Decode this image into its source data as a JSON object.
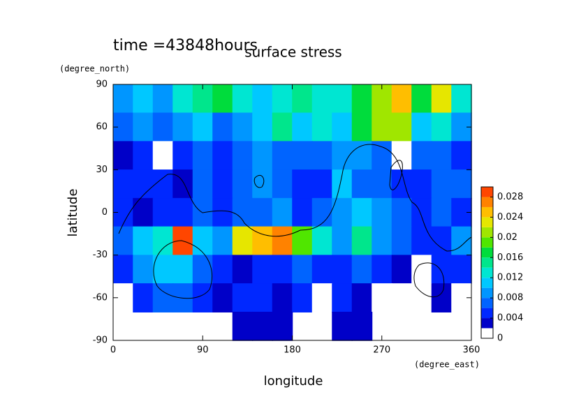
{
  "chart_data": {
    "type": "contour",
    "title": "surface stress",
    "subtitle": "time =43848hours",
    "x_label": "longitude",
    "y_label": "latitude",
    "x_unit": "(degree_east)",
    "y_unit": "(degree_north)",
    "xlim": [
      0,
      360
    ],
    "ylim": [
      -90,
      90
    ],
    "xticks": [
      0,
      90,
      180,
      270,
      360
    ],
    "yticks": [
      -90,
      -60,
      -30,
      0,
      30,
      60,
      90
    ],
    "x": [
      10,
      30,
      50,
      70,
      90,
      110,
      130,
      150,
      170,
      190,
      210,
      230,
      250,
      270,
      290,
      310,
      330,
      350
    ],
    "y": [
      80,
      60,
      40,
      20,
      0,
      -20,
      -40,
      -60,
      -80
    ],
    "z": [
      [
        0.008,
        0.01,
        0.008,
        0.012,
        0.014,
        0.016,
        0.012,
        0.01,
        0.012,
        0.014,
        0.012,
        0.012,
        0.016,
        0.02,
        0.024,
        0.016,
        0.022,
        0.012
      ],
      [
        0.006,
        0.008,
        0.006,
        0.008,
        0.01,
        0.006,
        0.008,
        0.01,
        0.014,
        0.01,
        0.012,
        0.01,
        0.016,
        0.02,
        0.02,
        0.01,
        0.012,
        0.008
      ],
      [
        0.002,
        0.004,
        0.001,
        0.004,
        0.006,
        0.004,
        0.006,
        0.008,
        0.006,
        0.006,
        0.006,
        0.008,
        0.008,
        0.006,
        0.001,
        0.006,
        0.006,
        0.004
      ],
      [
        0.004,
        0.004,
        0.004,
        0.002,
        0.006,
        0.004,
        0.006,
        0.008,
        0.006,
        0.004,
        0.004,
        0.01,
        0.006,
        0.006,
        0.004,
        0.004,
        0.006,
        0.006
      ],
      [
        0.004,
        0.002,
        0.004,
        0.004,
        0.006,
        0.004,
        0.006,
        0.006,
        0.008,
        0.004,
        0.006,
        0.008,
        0.01,
        0.008,
        0.006,
        0.004,
        0.006,
        0.004
      ],
      [
        0.006,
        0.01,
        0.012,
        0.028,
        0.01,
        0.008,
        0.022,
        0.024,
        0.026,
        0.018,
        0.012,
        0.008,
        0.014,
        0.008,
        0.006,
        0.004,
        0.004,
        0.008
      ],
      [
        0.004,
        0.008,
        0.01,
        0.01,
        0.006,
        0.004,
        0.002,
        0.004,
        0.004,
        0.006,
        0.004,
        0.004,
        0.006,
        0.004,
        0.002,
        0.001,
        0.004,
        0.004
      ],
      [
        0.001,
        0.004,
        0.006,
        0.006,
        0.004,
        0.002,
        0.004,
        0.004,
        0.002,
        0.004,
        0.001,
        0.004,
        0.002,
        0.001,
        0.001,
        0.001,
        0.002,
        0.001
      ],
      [
        null,
        null,
        null,
        null,
        null,
        null,
        0.002,
        0.002,
        0.002,
        null,
        null,
        0.002,
        0.002,
        null,
        null,
        null,
        null,
        null
      ]
    ],
    "levels": [
      0,
      0.002,
      0.004,
      0.006,
      0.008,
      0.01,
      0.012,
      0.014,
      0.016,
      0.018,
      0.02,
      0.022,
      0.024,
      0.026,
      0.028,
      0.03
    ],
    "colors": [
      "#ffffff",
      "#0000c8",
      "#0028ff",
      "#0064ff",
      "#0096ff",
      "#00c8ff",
      "#00e6d2",
      "#00e68c",
      "#00dc3c",
      "#50e600",
      "#a0e600",
      "#e6e600",
      "#ffbe00",
      "#ff8200",
      "#ff4600"
    ],
    "cbar_ticks": [
      0,
      0.004,
      0.008,
      0.012,
      0.016,
      0.02,
      0.024,
      0.028
    ]
  }
}
